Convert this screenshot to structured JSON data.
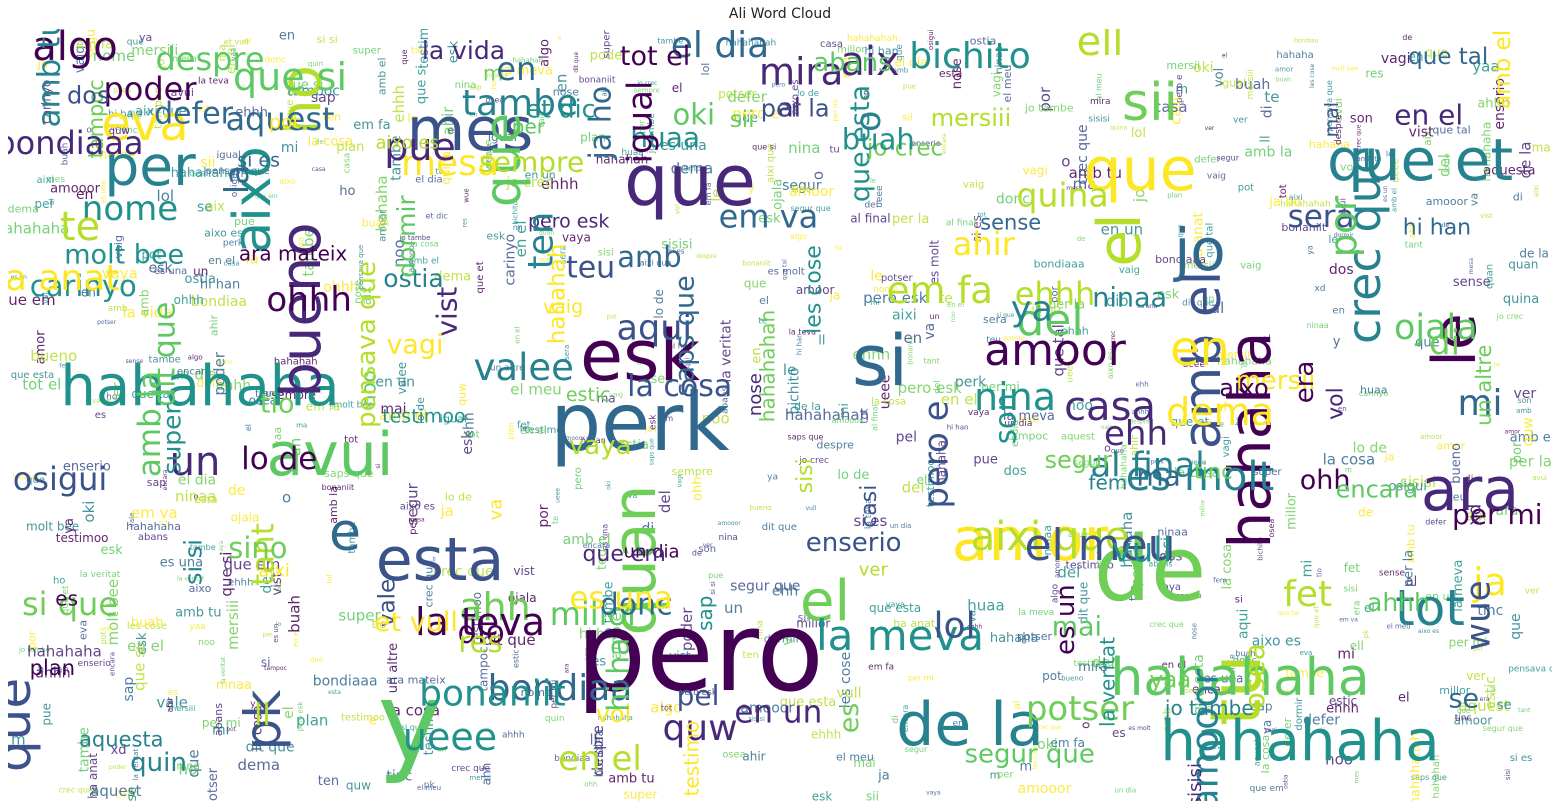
{
  "title": "Ali Word Cloud",
  "palette": [
    "#440154",
    "#3b528b",
    "#21918c",
    "#5ec962",
    "#fde725",
    "#b5de2b",
    "#31688e",
    "#26828e",
    "#6ece58",
    "#482878"
  ],
  "words": [
    "pero",
    "y",
    "perk",
    "que",
    "hahahaha",
    "tu",
    "de",
    "esta",
    "amor",
    "de la",
    "esk",
    "avui",
    "si",
    "ara",
    "hahahaha",
    "el",
    "quan",
    "mes",
    "que",
    "que et",
    "hahaha",
    "que",
    "jo",
    "bueno",
    "aixo",
    "ho",
    "el",
    "que",
    "eva",
    "per",
    "algo",
    "que si",
    "el dia",
    "aix",
    "bichito",
    "ell",
    "sii",
    "amb el",
    "en",
    "crec que",
    "le",
    "hahahaha",
    "e",
    "un",
    "la meva",
    "aixi que",
    "ahh",
    "el meu",
    "ja",
    "tot",
    "la teva",
    "millor",
    "bondiaa",
    "quw",
    "ueee",
    "en el",
    "si que",
    "osigui",
    "dema",
    "es molt",
    "amoor",
    "del",
    "mi",
    "casa",
    "nina",
    "ehhh",
    "potser",
    "pk",
    "mesa",
    "tambe",
    "poder",
    "despre",
    "aquest",
    "pue",
    "nome",
    "te",
    "que esta",
    "al",
    "amb",
    "amb la",
    "lo de",
    "aquesta",
    "testimo",
    "enserio",
    "un altre",
    "sempre",
    "et dic",
    "vol",
    "donc",
    "noo",
    "un dia",
    "valee",
    "mersii",
    "vale",
    "yaa",
    "fet",
    "carinyo",
    "que em",
    "que tal",
    "oki",
    "ohh",
    "jo tambe",
    "aixi",
    "sera",
    "tampoc",
    "osea",
    "molt bee",
    "pero esk",
    "la",
    "dit que",
    "tot el",
    "ninaa",
    "ahir",
    "mal",
    "m",
    "vaya",
    "huaa",
    "en un",
    "se",
    "mai",
    "per mi",
    "quin",
    "es una",
    "pel",
    "estic",
    "tant",
    "les cose",
    "mira",
    "sense",
    "encara",
    "ohhh",
    "o",
    "vagi",
    "dos",
    "es",
    "pensava que",
    "la veritat",
    "vist",
    "em va",
    "ojala",
    "igual",
    "fem",
    "hahahah",
    "lol",
    "jo crec",
    "em fa",
    "buah",
    "ehh",
    "ja ho",
    "ahhh",
    "era",
    "ten",
    "vaig",
    "pero e",
    "tio",
    "sisi",
    "son",
    "nose",
    "defer",
    "segur que",
    "plan",
    "al final",
    "va",
    "teu",
    "sino",
    "aixo es",
    "testimoo",
    "en el",
    "si es",
    "per",
    "aixo",
    "ya",
    "et vull",
    "la cosa",
    "hahahahah",
    "quina",
    "sap",
    "la vida",
    "en",
    "abans",
    "es un",
    "amooor",
    "vol",
    "aqui",
    "tinc",
    "mersiii",
    "super",
    "xd",
    "hi han",
    "hi ha",
    "es",
    "amb tu",
    "amb el",
    "casi",
    "sii",
    "ver",
    "bonaniit",
    "bondiaaa",
    "ma",
    "por",
    "dio",
    "ostia",
    "ha anat",
    "wue",
    "segur",
    "res",
    "vull",
    "sisisi",
    "saps que",
    "dormir",
    "ara mateix",
    "si si",
    "pot",
    "per la",
    "di",
    "ll"
  ]
}
